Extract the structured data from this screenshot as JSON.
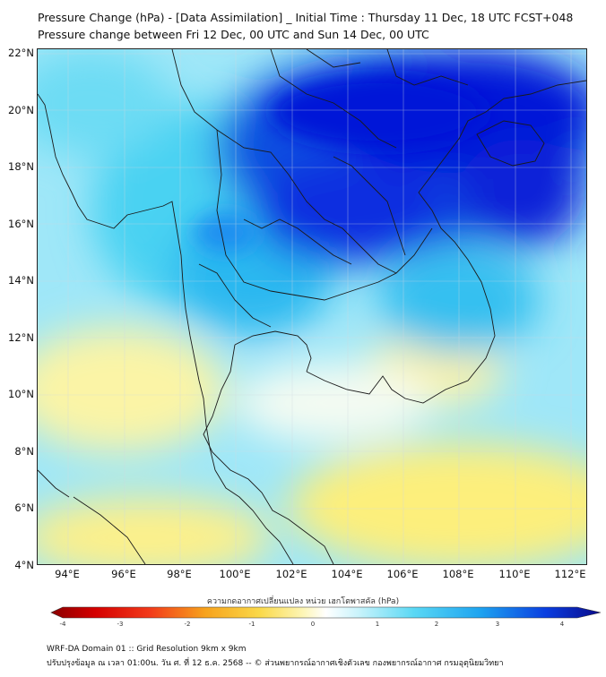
{
  "title_line1": "Pressure Change (hPa) - [Data Assimilation] _ Initial Time : Thursday 11 Dec, 18 UTC FCST+048",
  "title_line2": "Pressure change between Fri 12 Dec, 00 UTC and Sun 14 Dec, 00 UTC",
  "lat_labels": [
    "22°N",
    "20°N",
    "18°N",
    "16°N",
    "14°N",
    "12°N",
    "10°N",
    "8°N",
    "6°N",
    "4°N"
  ],
  "lon_labels": [
    "94°E",
    "96°E",
    "98°E",
    "100°E",
    "102°E",
    "104°E",
    "106°E",
    "108°E",
    "110°E",
    "112°E"
  ],
  "colorbar": {
    "label": "ความกดอากาศเปลี่ยนแปลง หน่วย เฮกโตพาสคัล (hPa)",
    "min": -4,
    "max": 4,
    "ticks": [
      "-4",
      "-3",
      "-2",
      "-1",
      "0",
      "1",
      "2",
      "3",
      "4"
    ]
  },
  "footer_line1": "WRF-DA Domain 01 :: Grid Resolution 9km x 9km",
  "footer_line2": "ปรับปรุงข้อมูล ณ เวลา 01:00น. วัน ศ. ที่ 12 ธ.ค. 2568 -- © ส่วนพยากรณ์อากาศเชิงตัวเลข กองพยากรณ์อากาศ กรมอุตุนิยมวิทยา",
  "colors": {
    "strong_fall": "#0010d8",
    "moderate_fall": "#1e8cf0",
    "slight_fall": "#27c8f0",
    "small_fall": "#8fe6f8",
    "near_zero": "#f2fbf6",
    "rise": "#fdf08a",
    "border": "#1a1a1a"
  }
}
